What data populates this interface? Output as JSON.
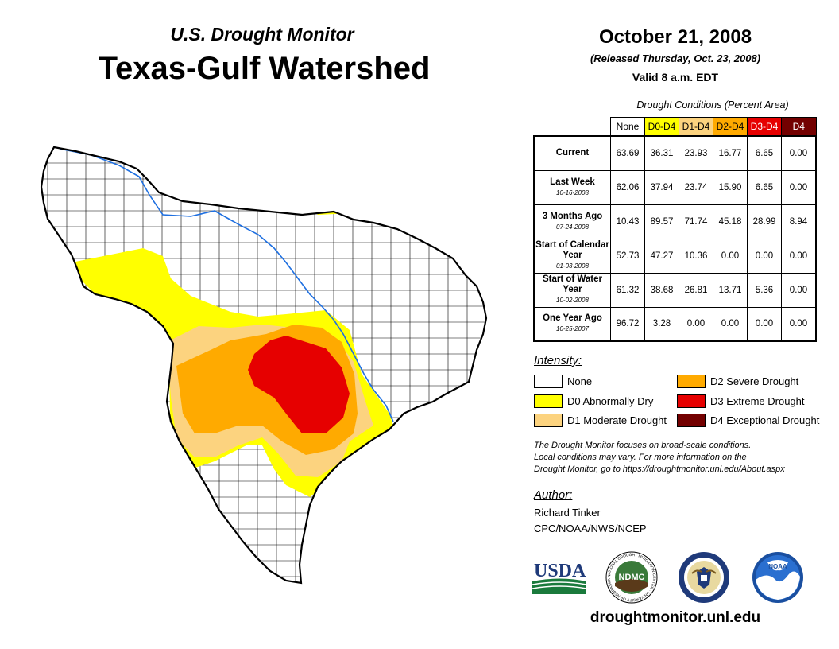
{
  "header": {
    "subtitle": "U.S. Drought Monitor",
    "title": "Texas-Gulf Watershed"
  },
  "date_block": {
    "date": "October 21, 2008",
    "released": "(Released Thursday, Oct. 23, 2008)",
    "valid": "Valid 8 a.m. EDT"
  },
  "table": {
    "caption": "Drought Conditions (Percent Area)",
    "columns": [
      {
        "label": "None",
        "color": "#ffffff",
        "text_color": "#000000"
      },
      {
        "label": "D0-D4",
        "color": "#ffff00",
        "text_color": "#000000"
      },
      {
        "label": "D1-D4",
        "color": "#fcd37f",
        "text_color": "#000000"
      },
      {
        "label": "D2-D4",
        "color": "#ffaa00",
        "text_color": "#000000"
      },
      {
        "label": "D3-D4",
        "color": "#e60000",
        "text_color": "#ffffff"
      },
      {
        "label": "D4",
        "color": "#730000",
        "text_color": "#ffffff"
      }
    ],
    "rows": [
      {
        "label": "Current",
        "date": "",
        "values": [
          "63.69",
          "36.31",
          "23.93",
          "16.77",
          "6.65",
          "0.00"
        ]
      },
      {
        "label": "Last Week",
        "date": "10-16-2008",
        "values": [
          "62.06",
          "37.94",
          "23.74",
          "15.90",
          "6.65",
          "0.00"
        ]
      },
      {
        "label": "3 Months Ago",
        "date": "07-24-2008",
        "values": [
          "10.43",
          "89.57",
          "71.74",
          "45.18",
          "28.99",
          "8.94"
        ]
      },
      {
        "label": "Start of Calendar Year",
        "date": "01-03-2008",
        "values": [
          "52.73",
          "47.27",
          "10.36",
          "0.00",
          "0.00",
          "0.00"
        ]
      },
      {
        "label": "Start of Water Year",
        "date": "10-02-2008",
        "values": [
          "61.32",
          "38.68",
          "26.81",
          "13.71",
          "5.36",
          "0.00"
        ]
      },
      {
        "label": "One Year Ago",
        "date": "10-25-2007",
        "values": [
          "96.72",
          "3.28",
          "0.00",
          "0.00",
          "0.00",
          "0.00"
        ]
      }
    ]
  },
  "legend": {
    "title": "Intensity:",
    "items": [
      {
        "label": "None",
        "color": "#ffffff"
      },
      {
        "label": "D0 Abnormally Dry",
        "color": "#ffff00"
      },
      {
        "label": "D1 Moderate Drought",
        "color": "#fcd37f"
      },
      {
        "label": "D2 Severe Drought",
        "color": "#ffaa00"
      },
      {
        "label": "D3 Extreme Drought",
        "color": "#e60000"
      },
      {
        "label": "D4 Exceptional Drought",
        "color": "#730000"
      }
    ]
  },
  "note": {
    "line1": "The Drought Monitor focuses on broad-scale conditions.",
    "line2": "Local conditions may vary. For more information on the",
    "line3": "Drought Monitor, go to https://droughtmonitor.unl.edu/About.aspx"
  },
  "author": {
    "label": "Author:",
    "name": "Richard Tinker",
    "org": "CPC/NOAA/NWS/NCEP"
  },
  "logos": {
    "usda": "USDA",
    "ndmc": "NDMC",
    "noaa": "NOAA",
    "ndmc_ring_text": "NATIONAL DROUGHT MITIGATION CENTER · UNIVERSITY OF NEBRASKA",
    "usda_icon": "usda-logo",
    "ndmc_icon": "ndmc-logo",
    "doc_icon": "department-of-commerce-seal",
    "noaa_icon": "noaa-logo"
  },
  "website": "droughtmonitor.unl.edu"
}
